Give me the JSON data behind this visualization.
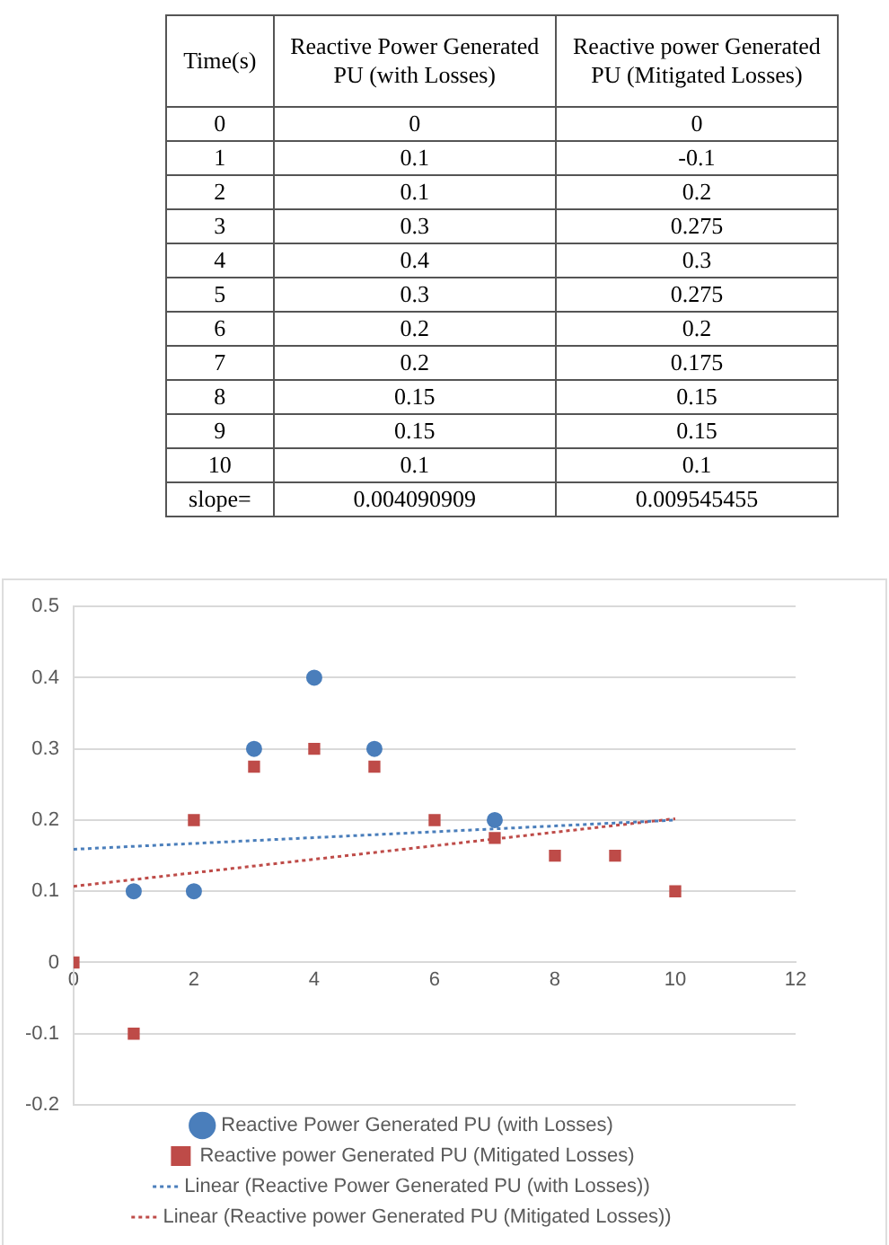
{
  "chart_data": [
    {
      "type": "heatmap",
      "ylabel": "Time(s)",
      "categories": [
        "Reactive Power Generated PU (with Losses)",
        "Reactive power Generated PU (Mitigated Losses)"
      ],
      "y_categories": [
        "0",
        "1",
        "2",
        "3",
        "4",
        "5",
        "6",
        "7",
        "8",
        "9",
        "10",
        "slope="
      ],
      "data_labels": true,
      "cells": [
        [
          0,
          0
        ],
        [
          0.1,
          -0.1
        ],
        [
          0.1,
          0.2
        ],
        [
          0.3,
          0.275
        ],
        [
          0.4,
          0.3
        ],
        [
          0.3,
          0.275
        ],
        [
          0.2,
          0.2
        ],
        [
          0.2,
          0.175
        ],
        [
          0.15,
          0.15
        ],
        [
          0.15,
          0.15
        ],
        [
          0.1,
          0.1
        ],
        [
          0.004090909,
          0.009545455
        ]
      ]
    },
    {
      "type": "scatter",
      "x": [
        0,
        1,
        2,
        3,
        4,
        5,
        6,
        7,
        8,
        9,
        10
      ],
      "series": [
        {
          "name": "Reactive Power Generated PU (with Losses)",
          "color": "#4a7ebb",
          "marker": "circle",
          "values": [
            null,
            0.1,
            0.1,
            0.3,
            0.4,
            0.3,
            null,
            0.2,
            null,
            null,
            null
          ]
        },
        {
          "name": "Reactive power Generated PU (Mitigated Losses)",
          "color": "#be4b48",
          "marker": "square",
          "values": [
            0,
            -0.1,
            0.2,
            0.275,
            0.3,
            0.275,
            0.2,
            0.175,
            0.15,
            0.15,
            0.1
          ]
        },
        {
          "name": "Linear (Reactive Power Generated PU (with Losses))",
          "type": "line",
          "line_style": "dotted",
          "marker": "none",
          "color": "#4a7ebb",
          "values": [
            0.159,
            null,
            null,
            null,
            null,
            null,
            null,
            null,
            null,
            null,
            0.2
          ]
        },
        {
          "name": "Linear (Reactive power Generated PU (Mitigated Losses))",
          "type": "line",
          "line_style": "dotted",
          "marker": "none",
          "color": "#be4b48",
          "values": [
            0.107,
            null,
            null,
            null,
            null,
            null,
            null,
            null,
            null,
            null,
            0.202
          ]
        }
      ],
      "xlim": [
        0,
        12
      ],
      "xticks": [
        0,
        2,
        4,
        6,
        8,
        10,
        12
      ],
      "ylim": [
        -0.2,
        0.5
      ],
      "yticks": [
        -0.2,
        -0.1,
        0,
        0.1,
        0.2,
        0.3,
        0.4,
        0.5
      ],
      "grid": "y",
      "legend": "bottom"
    }
  ]
}
